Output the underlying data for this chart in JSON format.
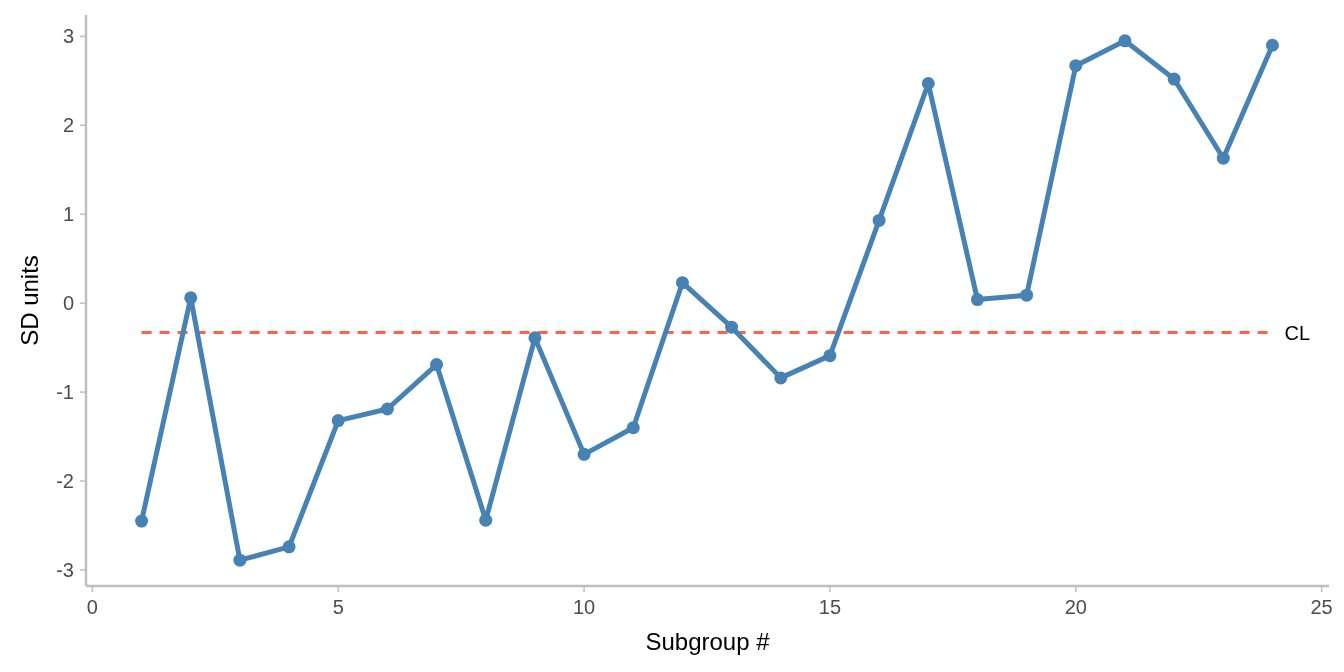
{
  "chart_data": {
    "type": "line",
    "xlabel": "Subgroup #",
    "ylabel": "SD units",
    "x": [
      1,
      2,
      3,
      4,
      5,
      6,
      7,
      8,
      9,
      10,
      11,
      12,
      13,
      14,
      15,
      16,
      17,
      18,
      19,
      20,
      21,
      22,
      23,
      24
    ],
    "series": [
      {
        "color": "#4682b4",
        "values": [
          -2.45,
          0.06,
          -2.89,
          -2.74,
          -1.32,
          -1.19,
          -0.69,
          -2.44,
          -0.39,
          -1.7,
          -1.4,
          0.23,
          -0.27,
          -0.84,
          -0.59,
          0.93,
          2.47,
          0.04,
          0.09,
          2.67,
          2.95,
          2.52,
          1.63,
          2.9
        ]
      }
    ],
    "xlim": [
      -0.13,
      25.15
    ],
    "ylim": [
      -3.18,
      3.24
    ],
    "xticks": [
      0,
      5,
      10,
      15,
      20,
      25
    ],
    "yticks": [
      -3,
      -2,
      -1,
      0,
      1,
      2,
      3
    ],
    "ref_lines": [
      {
        "axis": "y",
        "value": -0.33,
        "label": "CL",
        "color": "#ff6347",
        "line_style": "dashed"
      }
    ],
    "grid": false,
    "marker": "circle",
    "line_style": "solid"
  }
}
